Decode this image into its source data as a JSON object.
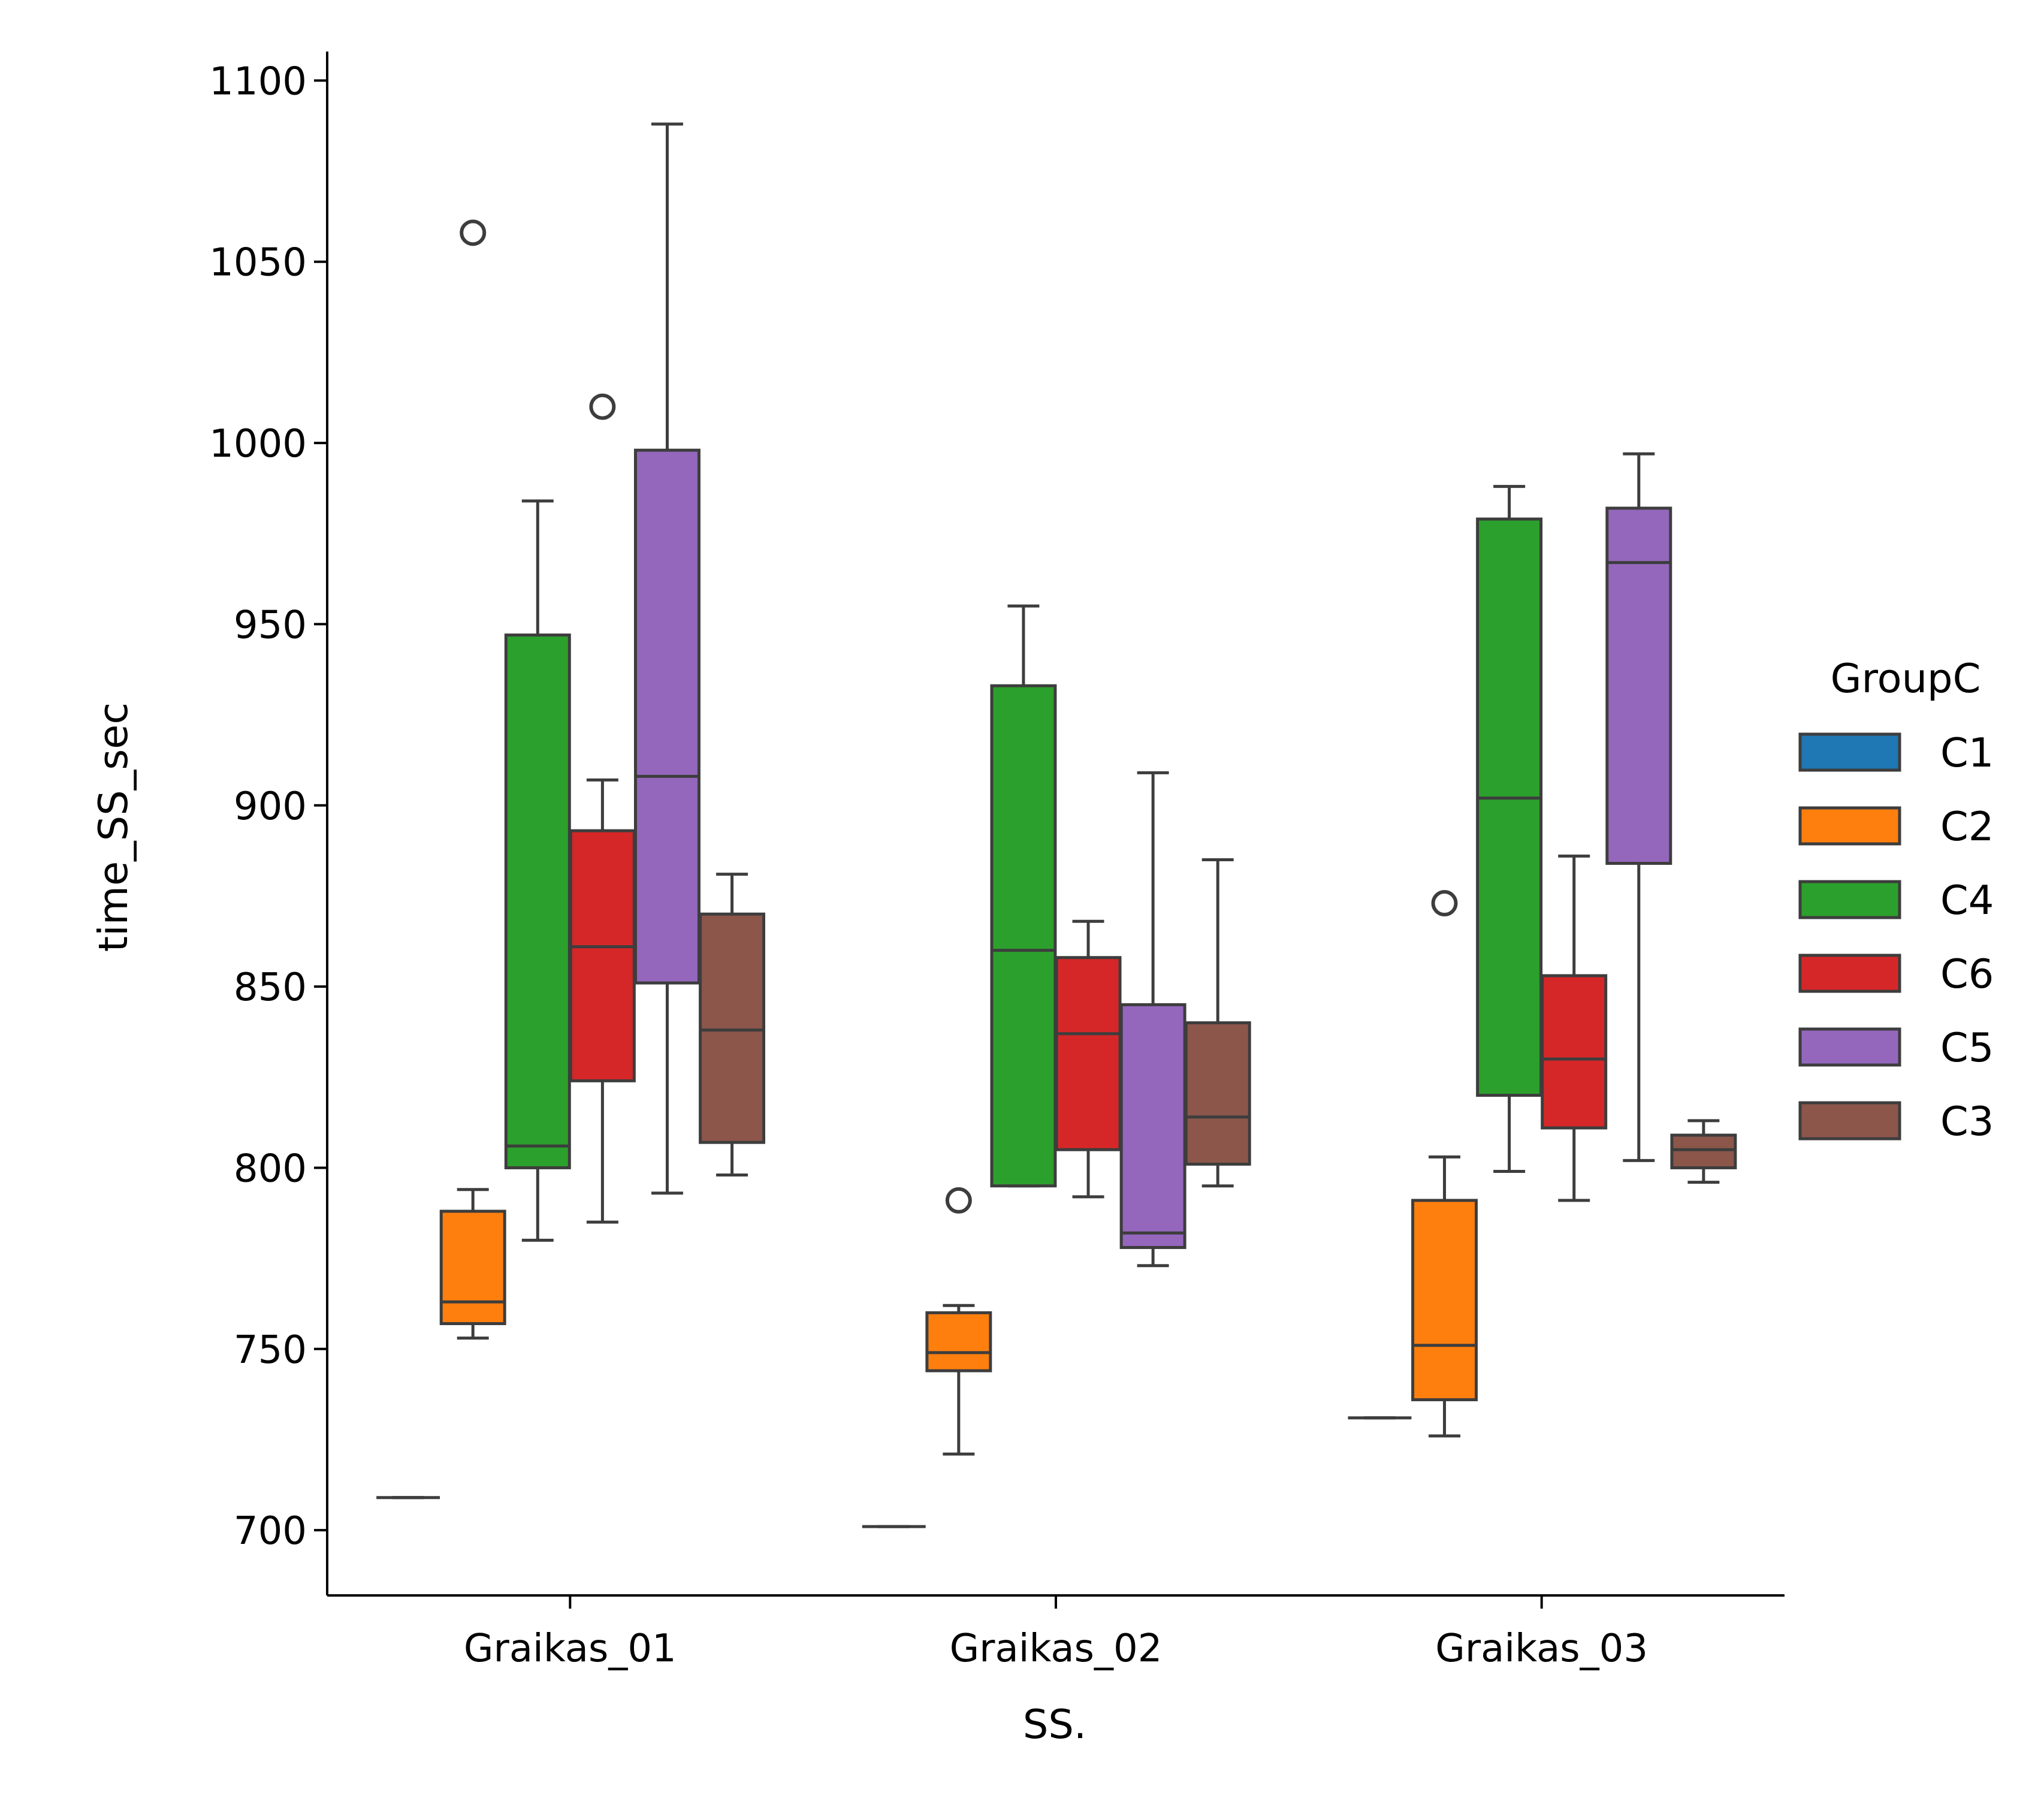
{
  "chart_data": {
    "type": "box",
    "xlabel": "SS.",
    "ylabel": "time_SS_sec",
    "categories": [
      "Graikas_01",
      "Graikas_02",
      "Graikas_03"
    ],
    "y_ticks": [
      700,
      750,
      800,
      850,
      900,
      950,
      1000,
      1050,
      1100
    ],
    "ylim": [
      682,
      1108
    ],
    "grid": false,
    "legend": {
      "title": "GroupC",
      "position": "right",
      "entries": [
        {
          "label": "C1",
          "color": "#1f77b4"
        },
        {
          "label": "C2",
          "color": "#ff7f0e"
        },
        {
          "label": "C4",
          "color": "#2ca02c"
        },
        {
          "label": "C6",
          "color": "#d62728"
        },
        {
          "label": "C5",
          "color": "#9467bd"
        },
        {
          "label": "C3",
          "color": "#8c564b"
        }
      ]
    },
    "series": [
      {
        "name": "C1",
        "color": "#1f77b4",
        "boxes": [
          {
            "whisker_low": 709,
            "q1": 709,
            "median": 709,
            "q3": 709,
            "whisker_high": 709,
            "outliers": []
          },
          {
            "whisker_low": 701,
            "q1": 701,
            "median": 701,
            "q3": 701,
            "whisker_high": 701,
            "outliers": []
          },
          {
            "whisker_low": 731,
            "q1": 731,
            "median": 731,
            "q3": 731,
            "whisker_high": 731,
            "outliers": []
          }
        ]
      },
      {
        "name": "C2",
        "color": "#ff7f0e",
        "boxes": [
          {
            "whisker_low": 753,
            "q1": 757,
            "median": 763,
            "q3": 788,
            "whisker_high": 794,
            "outliers": [
              1058
            ]
          },
          {
            "whisker_low": 721,
            "q1": 744,
            "median": 749,
            "q3": 760,
            "whisker_high": 762,
            "outliers": [
              791
            ]
          },
          {
            "whisker_low": 726,
            "q1": 736,
            "median": 751,
            "q3": 791,
            "whisker_high": 803,
            "outliers": [
              873
            ]
          }
        ]
      },
      {
        "name": "C4",
        "color": "#2ca02c",
        "boxes": [
          {
            "whisker_low": 780,
            "q1": 800,
            "median": 806,
            "q3": 947,
            "whisker_high": 984,
            "outliers": []
          },
          {
            "whisker_low": 795,
            "q1": 795,
            "median": 860,
            "q3": 933,
            "whisker_high": 955,
            "outliers": []
          },
          {
            "whisker_low": 799,
            "q1": 820,
            "median": 902,
            "q3": 979,
            "whisker_high": 988,
            "outliers": []
          }
        ]
      },
      {
        "name": "C6",
        "color": "#d62728",
        "boxes": [
          {
            "whisker_low": 785,
            "q1": 824,
            "median": 861,
            "q3": 893,
            "whisker_high": 907,
            "outliers": [
              1010
            ]
          },
          {
            "whisker_low": 792,
            "q1": 805,
            "median": 837,
            "q3": 858,
            "whisker_high": 868,
            "outliers": []
          },
          {
            "whisker_low": 791,
            "q1": 811,
            "median": 830,
            "q3": 853,
            "whisker_high": 886,
            "outliers": []
          }
        ]
      },
      {
        "name": "C5",
        "color": "#9467bd",
        "boxes": [
          {
            "whisker_low": 793,
            "q1": 851,
            "median": 908,
            "q3": 998,
            "whisker_high": 1088,
            "outliers": []
          },
          {
            "whisker_low": 773,
            "q1": 778,
            "median": 782,
            "q3": 845,
            "whisker_high": 909,
            "outliers": []
          },
          {
            "whisker_low": 802,
            "q1": 884,
            "median": 967,
            "q3": 982,
            "whisker_high": 997,
            "outliers": []
          }
        ]
      },
      {
        "name": "C3",
        "color": "#8c564b",
        "boxes": [
          {
            "whisker_low": 798,
            "q1": 807,
            "median": 838,
            "q3": 870,
            "whisker_high": 881,
            "outliers": []
          },
          {
            "whisker_low": 795,
            "q1": 801,
            "median": 814,
            "q3": 840,
            "whisker_high": 885,
            "outliers": []
          },
          {
            "whisker_low": 796,
            "q1": 800,
            "median": 805,
            "q3": 809,
            "whisker_high": 813,
            "outliers": []
          }
        ]
      }
    ]
  }
}
